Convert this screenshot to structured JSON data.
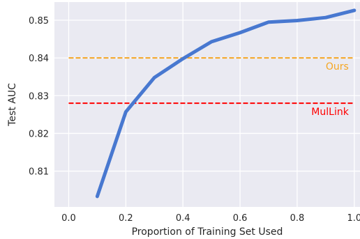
{
  "chart_data": {
    "type": "line",
    "xlabel": "Proportion of Training Set Used",
    "ylabel": "Test AUC",
    "xlim": [
      -0.05,
      1.02
    ],
    "ylim": [
      0.8005,
      0.8548
    ],
    "xticks": [
      "0.0",
      "0.2",
      "0.4",
      "0.6",
      "0.8",
      "1.0"
    ],
    "yticks": [
      "0.81",
      "0.82",
      "0.83",
      "0.84",
      "0.85"
    ],
    "grid": true,
    "series": [
      {
        "color": "#4878d0",
        "x": [
          0.1,
          0.2,
          0.3,
          0.4,
          0.5,
          0.6,
          0.7,
          0.8,
          0.9,
          1.0
        ],
        "y": [
          0.8033,
          0.8257,
          0.8348,
          0.8398,
          0.8443,
          0.8467,
          0.8495,
          0.8499,
          0.8507,
          0.8526
        ]
      }
    ],
    "reference_lines": [
      {
        "name": "Ours",
        "y": 0.84,
        "color": "#f5a623",
        "style": "dashed"
      },
      {
        "name": "MulLink",
        "y": 0.828,
        "color": "#ff0000",
        "style": "dashed"
      }
    ]
  }
}
